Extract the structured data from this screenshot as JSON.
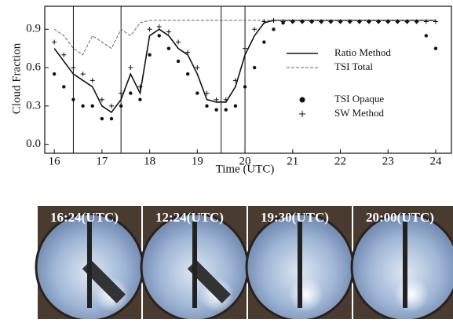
{
  "chart_data": {
    "type": "line",
    "xlabel": "Time (UTC)",
    "ylabel": "Cloud Fraction",
    "x": [
      16,
      16.2,
      16.4,
      16.6,
      16.8,
      17,
      17.2,
      17.4,
      17.6,
      17.8,
      18,
      18.2,
      18.4,
      18.6,
      18.8,
      19,
      19.2,
      19.4,
      19.6,
      19.8,
      20,
      20.2,
      20.4,
      20.6,
      20.8,
      21,
      21.2,
      21.4,
      21.6,
      21.8,
      22,
      22.2,
      22.4,
      22.6,
      22.8,
      23,
      23.2,
      23.4,
      23.6,
      23.8,
      24
    ],
    "series": [
      {
        "name": "Ratio Method",
        "style": "solid",
        "color": "#111111",
        "values": [
          0.75,
          0.65,
          0.55,
          0.5,
          0.45,
          0.3,
          0.25,
          0.35,
          0.55,
          0.4,
          0.85,
          0.9,
          0.85,
          0.75,
          0.7,
          0.55,
          0.35,
          0.33,
          0.33,
          0.45,
          0.7,
          0.85,
          0.95,
          0.97,
          0.97,
          0.97,
          0.97,
          0.97,
          0.97,
          0.97,
          0.97,
          0.97,
          0.97,
          0.97,
          0.97,
          0.97,
          0.97,
          0.97,
          0.97,
          0.97,
          0.97
        ]
      },
      {
        "name": "TSI Total",
        "style": "dashed",
        "color": "#666666",
        "values": [
          0.9,
          0.85,
          0.75,
          0.7,
          0.85,
          0.8,
          0.75,
          0.9,
          0.85,
          0.95,
          0.97,
          0.97,
          0.97,
          0.97,
          0.97,
          0.97,
          0.97,
          0.97,
          0.97,
          0.97,
          0.97,
          0.97,
          0.97,
          0.97,
          0.97,
          0.97,
          0.97,
          0.97,
          0.97,
          0.97,
          0.97,
          0.97,
          0.97,
          0.97,
          0.97,
          0.97,
          0.97,
          0.97,
          0.97,
          0.97,
          0.97
        ]
      },
      {
        "name": "TSI Opaque",
        "style": "dot",
        "color": "#111111",
        "values": [
          0.55,
          0.45,
          0.35,
          0.3,
          0.3,
          0.2,
          0.2,
          0.3,
          0.4,
          0.35,
          0.7,
          0.85,
          0.75,
          0.65,
          0.55,
          0.4,
          0.3,
          0.27,
          0.27,
          0.3,
          0.45,
          0.6,
          0.8,
          0.9,
          0.95,
          0.96,
          0.96,
          0.96,
          0.96,
          0.96,
          0.96,
          0.96,
          0.96,
          0.96,
          0.96,
          0.96,
          0.96,
          0.96,
          0.96,
          0.85,
          0.75
        ]
      },
      {
        "name": "SW Method",
        "style": "plus",
        "color": "#111111",
        "values": [
          0.8,
          0.7,
          0.6,
          0.55,
          0.5,
          0.35,
          0.3,
          0.4,
          0.6,
          0.45,
          0.9,
          0.92,
          0.88,
          0.8,
          0.72,
          0.6,
          0.4,
          0.35,
          0.35,
          0.5,
          0.75,
          0.9,
          0.96,
          0.97,
          0.96,
          0.96,
          0.96,
          0.96,
          0.96,
          0.96,
          0.96,
          0.96,
          0.96,
          0.96,
          0.96,
          0.96,
          0.96,
          0.96,
          0.96,
          0.96,
          0.96
        ]
      }
    ],
    "vlines": [
      16.4,
      17.4,
      19.5,
      20
    ],
    "xlim": [
      15.8,
      24.33
    ],
    "xticks": [
      16,
      17,
      18,
      19,
      20,
      21,
      22,
      23,
      24
    ],
    "ylim": [
      -0.07,
      1.08
    ],
    "yticks": [
      {
        "value": 0,
        "label": "0.0"
      },
      0.3,
      0.6,
      0.9
    ],
    "legend": "right"
  },
  "panels": [
    "16:24(UTC)",
    "12:24(UTC)",
    "19:30(UTC)",
    "20:00(UTC)"
  ]
}
